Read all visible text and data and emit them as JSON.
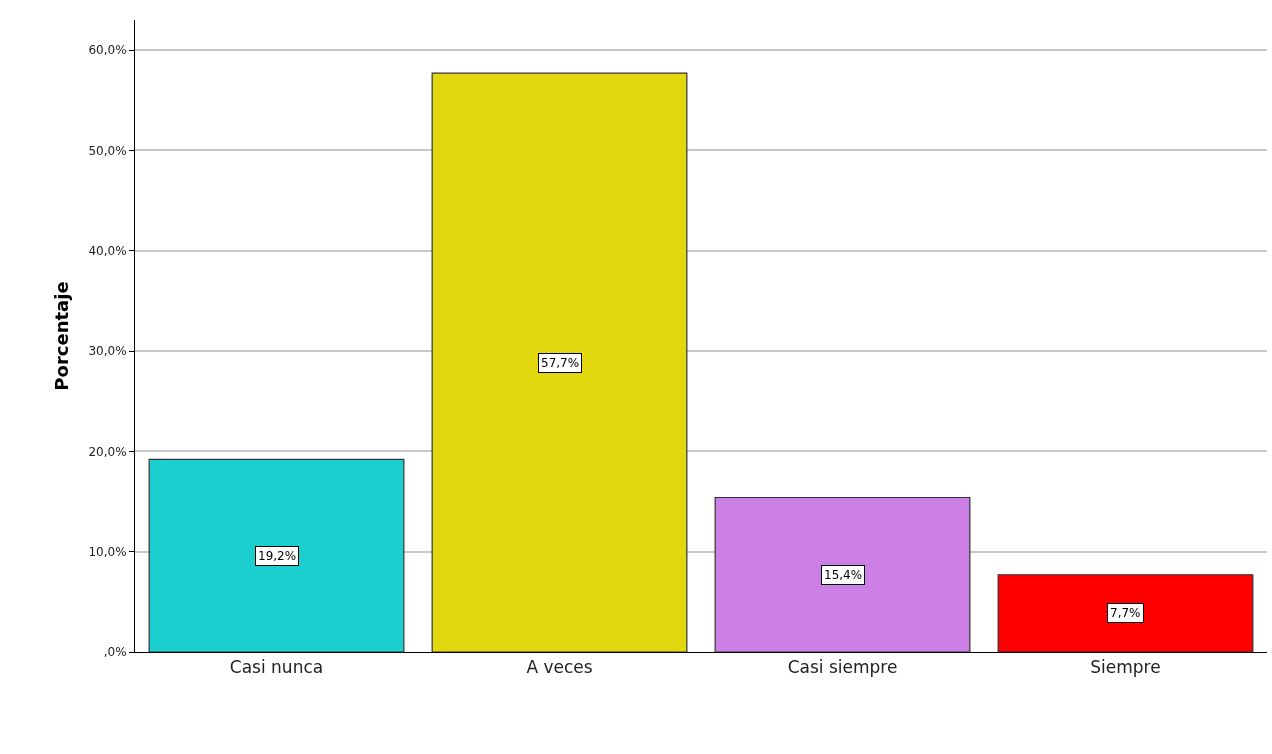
{
  "chart_data": {
    "type": "bar",
    "ylabel": "Porcentaje",
    "categories": [
      "Casi nunca",
      "A veces",
      "Casi siempre",
      "Siempre"
    ],
    "values": [
      19.2,
      57.7,
      15.4,
      7.7
    ],
    "value_labels": [
      "19,2%",
      "57,7%",
      "15,4%",
      "7,7%"
    ],
    "colors": [
      "#1ccfcf",
      "#e3d70f",
      "#cc80e6",
      "#ff0000"
    ],
    "ylim": [
      0,
      63
    ],
    "yticks": [
      {
        "value": 0,
        "label": ",0%"
      },
      {
        "value": 10,
        "label": "10,0%"
      },
      {
        "value": 20,
        "label": "20,0%"
      },
      {
        "value": 30,
        "label": "30,0%"
      },
      {
        "value": 40,
        "label": "40,0%"
      },
      {
        "value": 50,
        "label": "50,0%"
      },
      {
        "value": 60,
        "label": "60,0%"
      }
    ],
    "grid": "y"
  }
}
